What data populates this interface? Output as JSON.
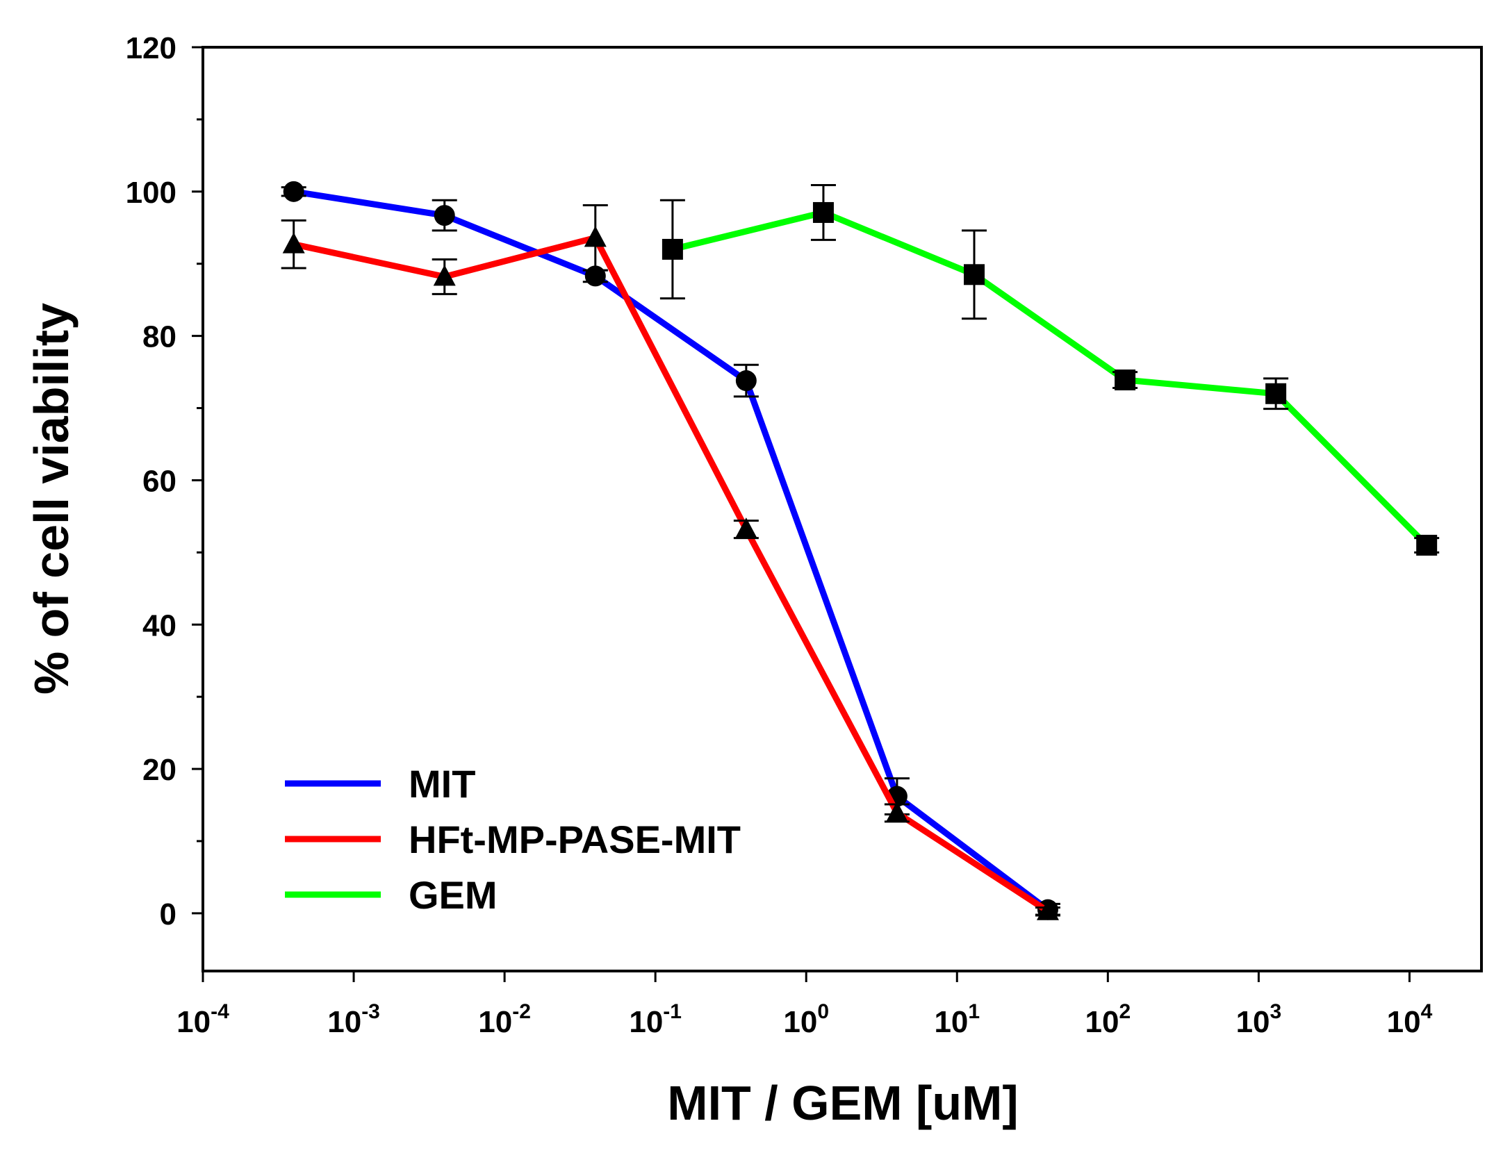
{
  "chart_data": {
    "type": "line",
    "title": "",
    "xlabel": "MIT / GEM [uM]",
    "ylabel": "% of cell viability",
    "xscale": "log",
    "xlim": [
      0.0001,
      30000
    ],
    "ylim": [
      -8,
      120
    ],
    "y_ticks": [
      0,
      20,
      40,
      60,
      80,
      100,
      120
    ],
    "x_ticks": [
      {
        "value": 0.0001,
        "base": "10",
        "exp": "-4"
      },
      {
        "value": 0.001,
        "base": "10",
        "exp": "-3"
      },
      {
        "value": 0.01,
        "base": "10",
        "exp": "-2"
      },
      {
        "value": 0.1,
        "base": "10",
        "exp": "-1"
      },
      {
        "value": 1,
        "base": "10",
        "exp": "0"
      },
      {
        "value": 10,
        "base": "10",
        "exp": "1"
      },
      {
        "value": 100,
        "base": "10",
        "exp": "2"
      },
      {
        "value": 1000,
        "base": "10",
        "exp": "3"
      },
      {
        "value": 10000,
        "base": "10",
        "exp": "4"
      }
    ],
    "grid": false,
    "legend_position": "bottom-left",
    "series": [
      {
        "name": "MIT",
        "color": "#0000ff",
        "marker": "circle",
        "x": [
          0.0004,
          0.004,
          0.04,
          0.4,
          4,
          40
        ],
        "y": [
          100,
          96.7,
          88.3,
          73.8,
          16.2,
          0.5
        ],
        "err": [
          0.6,
          2.1,
          0.8,
          2.2,
          2.5,
          0.8
        ]
      },
      {
        "name": "HFt-MP-PASE-MIT",
        "color": "#ff0000",
        "marker": "triangle",
        "x": [
          0.0004,
          0.004,
          0.04,
          0.4,
          4,
          40
        ],
        "y": [
          92.7,
          88.2,
          93.6,
          53.2,
          13.9,
          0.3
        ],
        "err": [
          3.3,
          2.4,
          4.5,
          1.2,
          1.2,
          0.5
        ]
      },
      {
        "name": "GEM",
        "color": "#00ff00",
        "marker": "square",
        "x": [
          0.13,
          1.3,
          13,
          130,
          1300,
          13000
        ],
        "y": [
          92,
          97.1,
          88.5,
          73.9,
          72,
          51
        ],
        "err": [
          6.8,
          3.8,
          6.1,
          1.1,
          2.1,
          1.0
        ]
      }
    ]
  }
}
